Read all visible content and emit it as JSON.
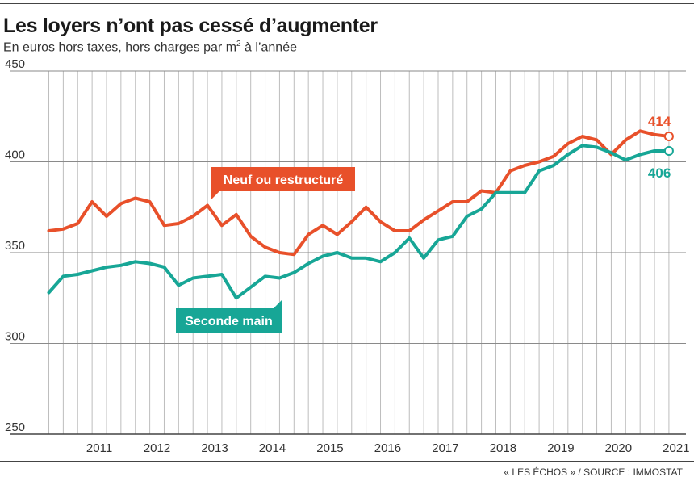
{
  "header": {
    "title": "Les loyers n’ont pas cessé d’augmenter",
    "subtitle_main": "En euros hors taxes, hors charges par m",
    "subtitle_sup": "2",
    "subtitle_tail": " à l’année"
  },
  "footer": {
    "source": "« LES ÉCHOS » / SOURCE : IMMOSTAT"
  },
  "colors": {
    "neuf": "#e8502a",
    "seconde": "#17a696",
    "grid": "#bdbdbd",
    "axis": "#444444"
  },
  "chart_data": {
    "type": "line",
    "title": "Les loyers n’ont pas cessé d’augmenter",
    "ylim": [
      250,
      450
    ],
    "yticks": [
      250,
      300,
      350,
      400,
      450
    ],
    "xlim": [
      2010.45,
      2021.67
    ],
    "xtick_labels": [
      "2011",
      "2012",
      "2013",
      "2014",
      "2015",
      "2016",
      "2017",
      "2018",
      "2019",
      "2020",
      "2021"
    ],
    "grid": true,
    "series": [
      {
        "name": "Neuf ou restructuré",
        "label_end": "414",
        "x": [
          2010.625,
          2010.875,
          2011.125,
          2011.375,
          2011.625,
          2011.875,
          2012.125,
          2012.375,
          2012.625,
          2012.875,
          2013.125,
          2013.375,
          2013.625,
          2013.875,
          2014.125,
          2014.375,
          2014.625,
          2014.875,
          2015.125,
          2015.375,
          2015.625,
          2015.875,
          2016.125,
          2016.375,
          2016.625,
          2016.875,
          2017.125,
          2017.375,
          2017.625,
          2017.875,
          2018.125,
          2018.375,
          2018.625,
          2018.875,
          2019.125,
          2019.375,
          2019.625,
          2019.875,
          2020.125,
          2020.375,
          2020.625,
          2020.875,
          2021.125,
          2021.375
        ],
        "values": [
          362,
          363,
          366,
          378,
          370,
          377,
          380,
          378,
          365,
          366,
          370,
          376,
          365,
          371,
          359,
          353,
          350,
          349,
          360,
          365,
          360,
          367,
          375,
          367,
          362,
          362,
          368,
          373,
          378,
          378,
          384,
          383,
          395,
          398,
          400,
          403,
          410,
          414,
          412,
          404,
          412,
          417,
          415,
          414
        ]
      },
      {
        "name": "Seconde main",
        "label_end": "406",
        "x": [
          2010.625,
          2010.875,
          2011.125,
          2011.375,
          2011.625,
          2011.875,
          2012.125,
          2012.375,
          2012.625,
          2012.875,
          2013.125,
          2013.375,
          2013.625,
          2013.875,
          2014.125,
          2014.375,
          2014.625,
          2014.875,
          2015.125,
          2015.375,
          2015.625,
          2015.875,
          2016.125,
          2016.375,
          2016.625,
          2016.875,
          2017.125,
          2017.375,
          2017.625,
          2017.875,
          2018.125,
          2018.375,
          2018.625,
          2018.875,
          2019.125,
          2019.375,
          2019.625,
          2019.875,
          2020.125,
          2020.375,
          2020.625,
          2020.875,
          2021.125,
          2021.375
        ],
        "values": [
          328,
          337,
          338,
          340,
          342,
          343,
          345,
          344,
          342,
          332,
          336,
          337,
          338,
          325,
          331,
          337,
          336,
          339,
          344,
          348,
          350,
          347,
          347,
          345,
          350,
          358,
          347,
          357,
          359,
          370,
          374,
          383,
          383,
          383,
          395,
          398,
          404,
          409,
          408,
          405,
          401,
          404,
          406,
          406
        ]
      }
    ]
  }
}
